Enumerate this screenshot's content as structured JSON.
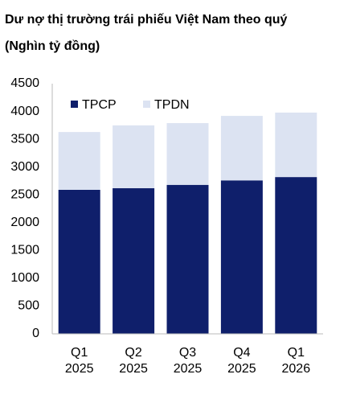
{
  "chart_data": {
    "type": "stacked_bar",
    "title": "Dư nợ thị trường trái phiếu Việt Nam theo quý",
    "subtitle": "(Nghìn tỷ đồng)",
    "categories": [
      [
        "Q1",
        "2025"
      ],
      [
        "Q2",
        "2025"
      ],
      [
        "Q3",
        "2025"
      ],
      [
        "Q4",
        "2025"
      ],
      [
        "Q1",
        "2026"
      ]
    ],
    "series": [
      {
        "name": "TPCP",
        "color": "#0f1f6b",
        "values": [
          2590,
          2620,
          2680,
          2760,
          2820
        ]
      },
      {
        "name": "TPDN",
        "color": "#dce3f2",
        "values": [
          1040,
          1130,
          1110,
          1160,
          1160
        ]
      }
    ],
    "ylim": [
      0,
      4500
    ],
    "yticks": [
      0,
      500,
      1000,
      1500,
      2000,
      2500,
      3000,
      3500,
      4000,
      4500
    ],
    "grid": false,
    "legend": "top-left"
  }
}
